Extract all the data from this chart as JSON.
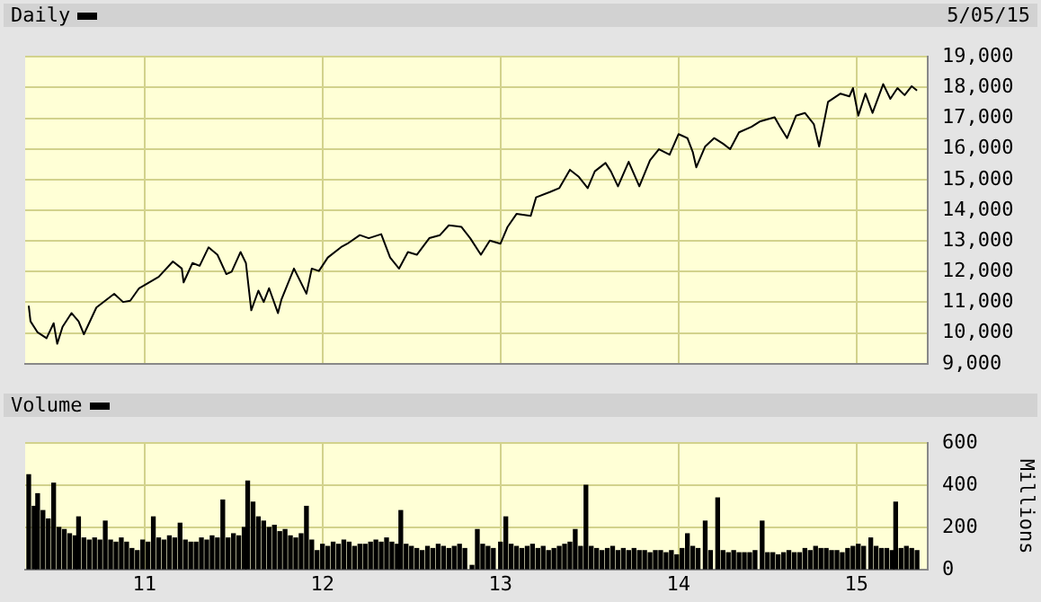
{
  "chart_data": [
    {
      "type": "line",
      "legend": "top left",
      "annotations": [
        "5/05/15"
      ],
      "grid": true,
      "tick_labels": "y",
      "xlim": [
        2010.33,
        2015.4
      ],
      "xticks": [
        {
          "value": 2011,
          "label": null
        },
        {
          "value": 2012,
          "label": null
        },
        {
          "value": 2013,
          "label": null
        },
        {
          "value": 2014,
          "label": null
        },
        {
          "value": 2015,
          "label": null
        }
      ],
      "ylim": [
        9000,
        19000
      ],
      "yticks": [
        {
          "value": 9000,
          "label": "9,000"
        },
        {
          "value": 10000,
          "label": "10,000"
        },
        {
          "value": 11000,
          "label": "11,000"
        },
        {
          "value": 12000,
          "label": "12,000"
        },
        {
          "value": 13000,
          "label": "13,000"
        },
        {
          "value": 14000,
          "label": "14,000"
        },
        {
          "value": 15000,
          "label": "15,000"
        },
        {
          "value": 16000,
          "label": "16,000"
        },
        {
          "value": 17000,
          "label": "17,000"
        },
        {
          "value": 18000,
          "label": "18,000"
        },
        {
          "value": 19000,
          "label": "19,000"
        }
      ],
      "series": [
        {
          "name": "Daily",
          "color": "#000000",
          "x": [
            2010.35,
            2010.36,
            2010.4,
            2010.45,
            2010.49,
            2010.51,
            2010.54,
            2010.59,
            2010.63,
            2010.66,
            2010.73,
            2010.83,
            2010.88,
            2010.92,
            2010.97,
            2011.08,
            2011.16,
            2011.21,
            2011.22,
            2011.27,
            2011.31,
            2011.36,
            2011.41,
            2011.46,
            2011.49,
            2011.54,
            2011.57,
            2011.6,
            2011.64,
            2011.67,
            2011.7,
            2011.75,
            2011.77,
            2011.84,
            2011.91,
            2011.94,
            2011.98,
            2012.03,
            2012.11,
            2012.14,
            2012.21,
            2012.26,
            2012.33,
            2012.38,
            2012.43,
            2012.48,
            2012.53,
            2012.6,
            2012.66,
            2012.71,
            2012.78,
            2012.83,
            2012.89,
            2012.94,
            2013.0,
            2013.04,
            2013.09,
            2013.17,
            2013.2,
            2013.28,
            2013.33,
            2013.39,
            2013.44,
            2013.49,
            2013.53,
            2013.59,
            2013.62,
            2013.66,
            2013.72,
            2013.78,
            2013.84,
            2013.89,
            2013.95,
            2014.0,
            2014.05,
            2014.08,
            2014.1,
            2014.15,
            2014.2,
            2014.25,
            2014.29,
            2014.34,
            2014.41,
            2014.46,
            2014.54,
            2014.57,
            2014.61,
            2014.66,
            2014.71,
            2014.76,
            2014.79,
            2014.84,
            2014.91,
            2014.96,
            2014.98,
            2015.01,
            2015.05,
            2015.09,
            2015.15,
            2015.19,
            2015.23,
            2015.27,
            2015.31,
            2015.34
          ],
          "values": [
            10890,
            10380,
            10020,
            9830,
            10320,
            9650,
            10200,
            10650,
            10380,
            9960,
            10830,
            11280,
            11010,
            11050,
            11460,
            11830,
            12330,
            12100,
            11650,
            12280,
            12190,
            12790,
            12550,
            11920,
            12000,
            12640,
            12280,
            10740,
            11380,
            11010,
            11460,
            10650,
            11100,
            12100,
            11280,
            12100,
            12020,
            12460,
            12820,
            12910,
            13190,
            13090,
            13220,
            12460,
            12100,
            12640,
            12550,
            13090,
            13190,
            13510,
            13460,
            13090,
            12550,
            13010,
            12910,
            13460,
            13880,
            13820,
            14420,
            14600,
            14720,
            15320,
            15090,
            14720,
            15270,
            15540,
            15270,
            14780,
            15580,
            14780,
            15630,
            15990,
            15810,
            16480,
            16350,
            15900,
            15400,
            16080,
            16350,
            16170,
            15990,
            16540,
            16720,
            16900,
            17030,
            16720,
            16350,
            17080,
            17170,
            16810,
            16080,
            17530,
            17800,
            17710,
            17980,
            17080,
            17800,
            17170,
            18110,
            17630,
            17980,
            17750,
            18040,
            17900
          ]
        }
      ]
    },
    {
      "type": "bar",
      "legend": "top left",
      "grid": true,
      "ylabel": "Millions",
      "xlim": [
        2010.33,
        2015.4
      ],
      "xticks": [
        {
          "value": 2011,
          "label": "11"
        },
        {
          "value": 2012,
          "label": "12"
        },
        {
          "value": 2013,
          "label": "13"
        },
        {
          "value": 2014,
          "label": "14"
        },
        {
          "value": 2015,
          "label": "15"
        }
      ],
      "ylim": [
        0,
        600
      ],
      "yticks": [
        0,
        200,
        400,
        600
      ],
      "series": [
        {
          "name": "Volume",
          "color": "#000000",
          "x": [
            2010.35,
            2010.38,
            2010.4,
            2010.43,
            2010.46,
            2010.49,
            2010.52,
            2010.55,
            2010.58,
            2010.61,
            2010.63,
            2010.66,
            2010.69,
            2010.72,
            2010.75,
            2010.78,
            2010.81,
            2010.84,
            2010.87,
            2010.9,
            2010.93,
            2010.96,
            2010.99,
            2011.02,
            2011.05,
            2011.08,
            2011.11,
            2011.14,
            2011.17,
            2011.2,
            2011.23,
            2011.26,
            2011.29,
            2011.32,
            2011.35,
            2011.38,
            2011.41,
            2011.44,
            2011.47,
            2011.5,
            2011.53,
            2011.56,
            2011.58,
            2011.61,
            2011.64,
            2011.67,
            2011.7,
            2011.73,
            2011.76,
            2011.79,
            2011.82,
            2011.85,
            2011.88,
            2011.91,
            2011.94,
            2011.97,
            2012.0,
            2012.03,
            2012.06,
            2012.09,
            2012.12,
            2012.15,
            2012.18,
            2012.21,
            2012.24,
            2012.27,
            2012.3,
            2012.33,
            2012.36,
            2012.39,
            2012.42,
            2012.44,
            2012.47,
            2012.5,
            2012.53,
            2012.56,
            2012.59,
            2012.62,
            2012.65,
            2012.68,
            2012.71,
            2012.74,
            2012.77,
            2012.8,
            2012.84,
            2012.87,
            2012.9,
            2012.93,
            2012.96,
            2013.0,
            2013.03,
            2013.06,
            2013.09,
            2013.12,
            2013.15,
            2013.18,
            2013.21,
            2013.24,
            2013.27,
            2013.3,
            2013.33,
            2013.36,
            2013.39,
            2013.42,
            2013.45,
            2013.48,
            2013.51,
            2013.54,
            2013.57,
            2013.6,
            2013.63,
            2013.66,
            2013.69,
            2013.72,
            2013.75,
            2013.78,
            2013.81,
            2013.84,
            2013.87,
            2013.9,
            2013.93,
            2013.96,
            2013.99,
            2014.02,
            2014.05,
            2014.08,
            2014.11,
            2014.15,
            2014.18,
            2014.22,
            2014.25,
            2014.28,
            2014.31,
            2014.34,
            2014.37,
            2014.4,
            2014.43,
            2014.47,
            2014.5,
            2014.53,
            2014.56,
            2014.59,
            2014.62,
            2014.65,
            2014.68,
            2014.71,
            2014.74,
            2014.77,
            2014.8,
            2014.83,
            2014.86,
            2014.89,
            2014.92,
            2014.95,
            2014.98,
            2015.01,
            2015.04,
            2015.08,
            2015.11,
            2015.14,
            2015.17,
            2015.2,
            2015.22,
            2015.25,
            2015.28,
            2015.31,
            2015.34
          ],
          "values": [
            450,
            300,
            360,
            280,
            240,
            410,
            200,
            190,
            170,
            160,
            250,
            150,
            140,
            150,
            140,
            230,
            140,
            130,
            150,
            130,
            100,
            90,
            140,
            130,
            250,
            150,
            140,
            160,
            150,
            220,
            140,
            130,
            130,
            150,
            140,
            160,
            150,
            330,
            150,
            170,
            160,
            200,
            420,
            320,
            250,
            230,
            200,
            210,
            180,
            190,
            160,
            150,
            170,
            300,
            140,
            90,
            120,
            110,
            130,
            120,
            140,
            130,
            110,
            120,
            120,
            130,
            140,
            130,
            150,
            130,
            120,
            280,
            120,
            110,
            100,
            90,
            110,
            100,
            120,
            110,
            100,
            110,
            120,
            100,
            20,
            190,
            120,
            110,
            100,
            130,
            250,
            120,
            110,
            100,
            110,
            120,
            100,
            110,
            90,
            100,
            110,
            120,
            130,
            190,
            110,
            400,
            110,
            100,
            90,
            100,
            110,
            90,
            100,
            90,
            100,
            90,
            90,
            80,
            90,
            90,
            80,
            90,
            70,
            100,
            170,
            110,
            100,
            230,
            90,
            340,
            90,
            80,
            90,
            80,
            80,
            80,
            90,
            230,
            80,
            80,
            70,
            80,
            90,
            80,
            80,
            100,
            90,
            110,
            100,
            100,
            90,
            90,
            80,
            100,
            110,
            120,
            110,
            150,
            110,
            100,
            100,
            90,
            320,
            100,
            110,
            100,
            90
          ]
        }
      ]
    }
  ]
}
